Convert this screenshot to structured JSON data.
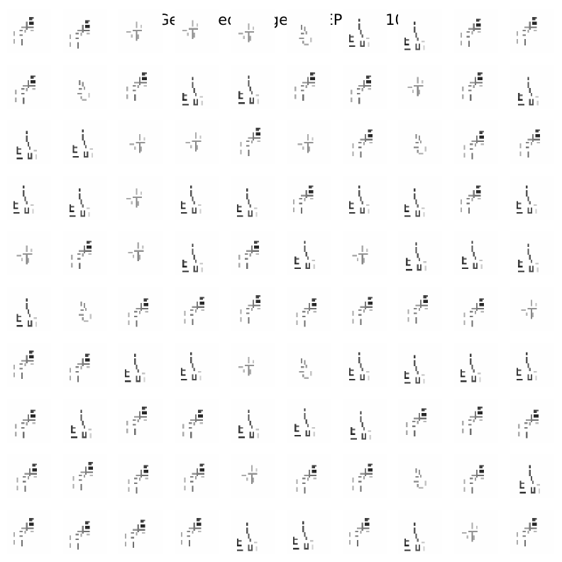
{
  "figure": {
    "title": "Generated Images on EPOCH: 10",
    "rows": 10,
    "columns": 10
  },
  "grid": [
    [
      "A",
      "A",
      "C",
      "C",
      "C",
      "D",
      "B",
      "B",
      "A",
      "A"
    ],
    [
      "A",
      "D",
      "A",
      "B",
      "B",
      "A",
      "A",
      "C",
      "A",
      "B"
    ],
    [
      "B",
      "B",
      "C",
      "C",
      "A",
      "C",
      "A",
      "D",
      "A",
      "A"
    ],
    [
      "B",
      "B",
      "C",
      "B",
      "B",
      "A",
      "B",
      "B",
      "A",
      "B"
    ],
    [
      "C",
      "A",
      "C",
      "B",
      "A",
      "B",
      "C",
      "B",
      "B",
      "B"
    ],
    [
      "B",
      "D",
      "A",
      "A",
      "A",
      "A",
      "A",
      "A",
      "A",
      "C"
    ],
    [
      "A",
      "A",
      "B",
      "B",
      "C",
      "D",
      "B",
      "B",
      "B",
      "B"
    ],
    [
      "A",
      "B",
      "A",
      "A",
      "B",
      "B",
      "B",
      "A",
      "A",
      "A"
    ],
    [
      "A",
      "A",
      "A",
      "A",
      "C",
      "A",
      "A",
      "D",
      "A",
      "B"
    ],
    [
      "A",
      "A",
      "A",
      "A",
      "B",
      "B",
      "A",
      "B",
      "C",
      "A"
    ]
  ]
}
